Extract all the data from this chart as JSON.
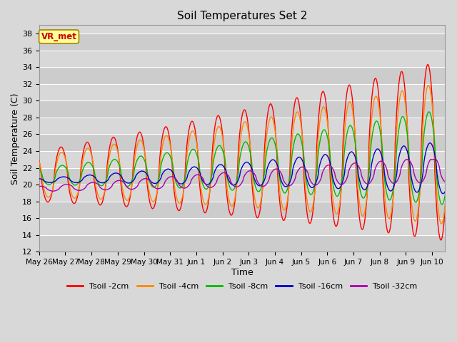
{
  "title": "Soil Temperatures Set 2",
  "xlabel": "Time",
  "ylabel": "Soil Temperature (C)",
  "ylim": [
    12,
    39
  ],
  "yticks": [
    12,
    14,
    16,
    18,
    20,
    22,
    24,
    26,
    28,
    30,
    32,
    34,
    36,
    38
  ],
  "background_color": "#d8d8d8",
  "plot_bg_color": "#d8d8d8",
  "alt_band_color": "#cccccc",
  "grid_color": "#ffffff",
  "legend_label": "VR_met",
  "series_colors": {
    "Tsoil -2cm": "#ff0000",
    "Tsoil -4cm": "#ff8800",
    "Tsoil -8cm": "#00bb00",
    "Tsoil -16cm": "#0000cc",
    "Tsoil -32cm": "#aa00aa"
  },
  "n_days": 15.5,
  "points_per_day": 96
}
